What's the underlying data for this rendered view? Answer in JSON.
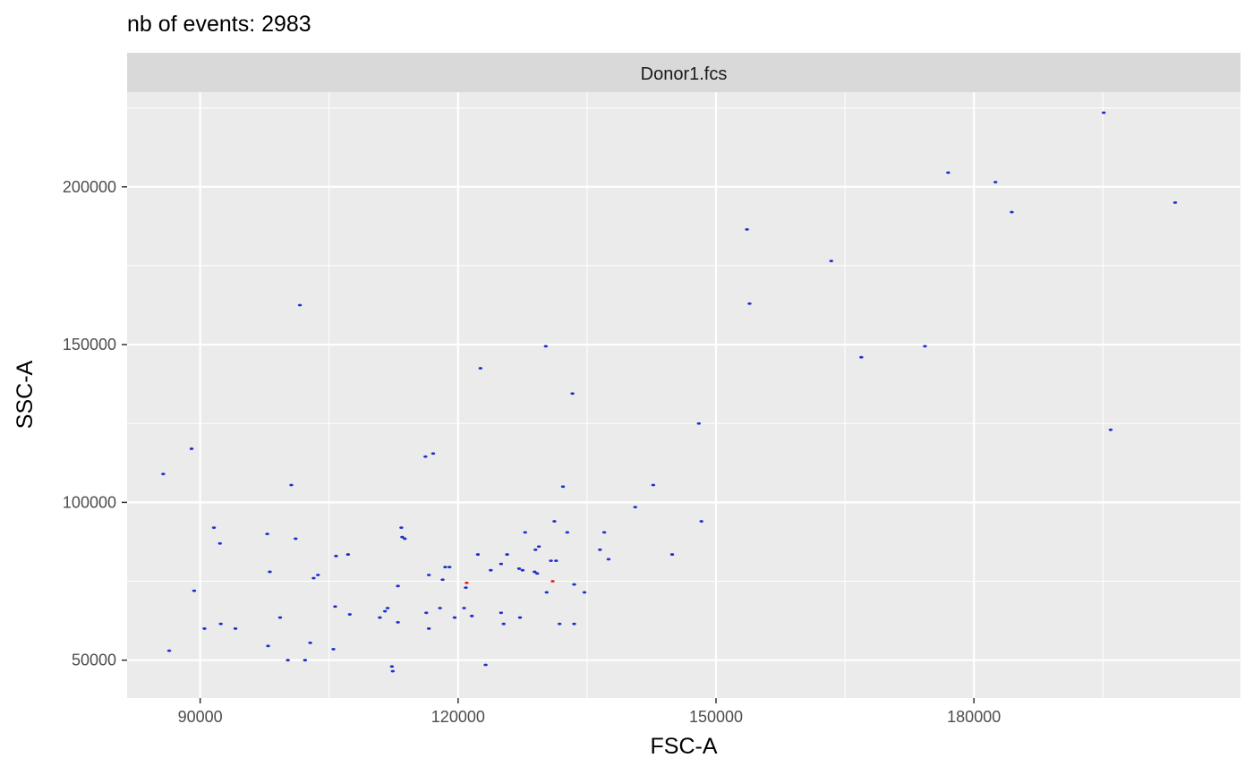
{
  "chart_data": {
    "type": "scatter",
    "title": "nb of events: 2983",
    "facet_label": "Donor1.fcs",
    "xlabel": "FSC-A",
    "ylabel": "SSC-A",
    "xlim": [
      81500,
      211000
    ],
    "ylim": [
      38000,
      230000
    ],
    "x_ticks": [
      90000,
      120000,
      150000,
      180000
    ],
    "x_tick_labels": [
      "90000",
      "120000",
      "150000",
      "180000"
    ],
    "y_ticks": [
      50000,
      100000,
      150000,
      200000
    ],
    "y_tick_labels": [
      "50000",
      "100000",
      "150000",
      "200000"
    ],
    "grid": true,
    "colors": {
      "panel_background": "#ebebeb",
      "strip_background": "#d9d9d9",
      "grid": "#ffffff",
      "points_main": "#1f2fcc",
      "points_highlight": "#e8231a"
    },
    "series": [
      {
        "color": "#1f2fcc",
        "points": [
          [
            85700,
            109000
          ],
          [
            86400,
            53000
          ],
          [
            89000,
            117000
          ],
          [
            89300,
            72000
          ],
          [
            90500,
            60000
          ],
          [
            91600,
            92000
          ],
          [
            92300,
            87000
          ],
          [
            92400,
            61500
          ],
          [
            94100,
            60000
          ],
          [
            97800,
            90000
          ],
          [
            97900,
            54500
          ],
          [
            98100,
            78000
          ],
          [
            99300,
            63500
          ],
          [
            100200,
            50000
          ],
          [
            100600,
            105500
          ],
          [
            101100,
            88500
          ],
          [
            101600,
            162500
          ],
          [
            102200,
            50000
          ],
          [
            102800,
            55500
          ],
          [
            103200,
            76000
          ],
          [
            103700,
            77000
          ],
          [
            105500,
            53500
          ],
          [
            105700,
            67000
          ],
          [
            105800,
            83000
          ],
          [
            107200,
            83500
          ],
          [
            107400,
            64500
          ],
          [
            110900,
            63500
          ],
          [
            111500,
            65500
          ],
          [
            111800,
            66500
          ],
          [
            112300,
            48000
          ],
          [
            112400,
            46500
          ],
          [
            113000,
            62000
          ],
          [
            113000,
            73500
          ],
          [
            113400,
            92000
          ],
          [
            113500,
            89000
          ],
          [
            113800,
            88500
          ],
          [
            116200,
            114500
          ],
          [
            116300,
            65000
          ],
          [
            116600,
            77000
          ],
          [
            116600,
            60000
          ],
          [
            117100,
            115500
          ],
          [
            117900,
            66500
          ],
          [
            118200,
            75500
          ],
          [
            118500,
            79500
          ],
          [
            119000,
            79500
          ],
          [
            119600,
            63500
          ],
          [
            120700,
            66500
          ],
          [
            120900,
            73000
          ],
          [
            121600,
            64000
          ],
          [
            122300,
            83500
          ],
          [
            122600,
            142500
          ],
          [
            123200,
            48500
          ],
          [
            123800,
            78500
          ],
          [
            125000,
            65000
          ],
          [
            125000,
            80500
          ],
          [
            125300,
            61500
          ],
          [
            125700,
            83500
          ],
          [
            127100,
            79000
          ],
          [
            127200,
            63500
          ],
          [
            127500,
            78500
          ],
          [
            127800,
            90500
          ],
          [
            128900,
            78000
          ],
          [
            129000,
            85000
          ],
          [
            129200,
            77500
          ],
          [
            129400,
            86000
          ],
          [
            130200,
            149500
          ],
          [
            130300,
            71500
          ],
          [
            130800,
            81500
          ],
          [
            131200,
            94000
          ],
          [
            131400,
            81500
          ],
          [
            131800,
            61500
          ],
          [
            132200,
            105000
          ],
          [
            132700,
            90500
          ],
          [
            133300,
            134500
          ],
          [
            133500,
            61500
          ],
          [
            133500,
            74000
          ],
          [
            134700,
            71500
          ],
          [
            136500,
            85000
          ],
          [
            137000,
            90500
          ],
          [
            137500,
            82000
          ],
          [
            140600,
            98500
          ],
          [
            142700,
            105500
          ],
          [
            144900,
            83500
          ],
          [
            148000,
            125000
          ],
          [
            148300,
            94000
          ],
          [
            153600,
            186500
          ],
          [
            153900,
            163000
          ],
          [
            163400,
            176500
          ],
          [
            166900,
            146000
          ],
          [
            174300,
            149500
          ],
          [
            177000,
            204500
          ],
          [
            182500,
            201500
          ],
          [
            184400,
            192000
          ],
          [
            195100,
            223500
          ],
          [
            195900,
            123000
          ],
          [
            203400,
            195000
          ]
        ]
      },
      {
        "color": "#e8231a",
        "points": [
          [
            121000,
            74500
          ],
          [
            131000,
            75000
          ]
        ]
      }
    ]
  }
}
